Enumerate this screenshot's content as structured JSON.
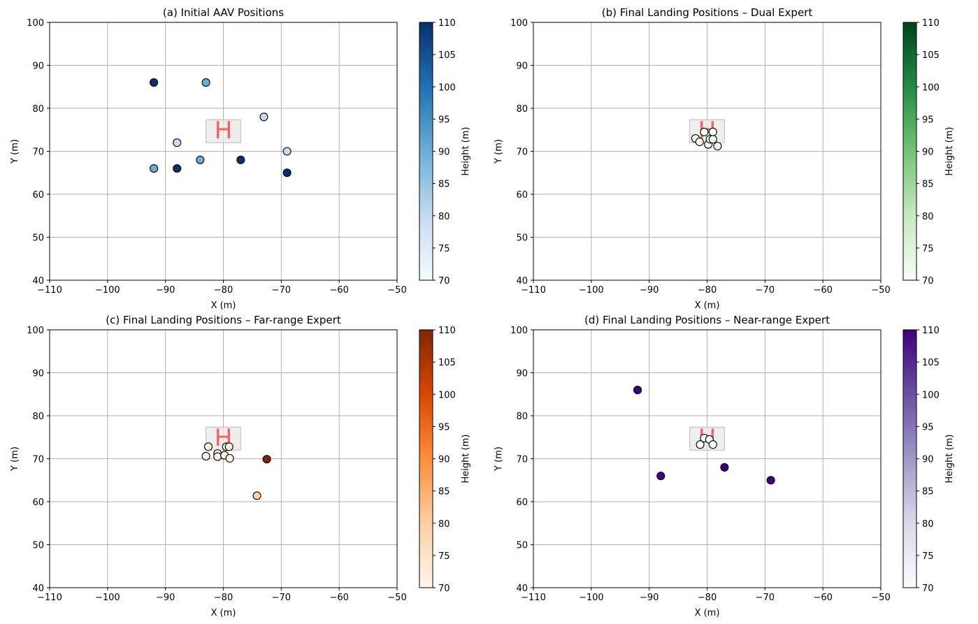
{
  "chart_data": [
    {
      "type": "scatter",
      "title": "(a) Initial AAV Positions",
      "xlabel": "X (m)",
      "ylabel": "Y (m)",
      "xlim": [
        -110,
        -50
      ],
      "ylim": [
        40,
        100
      ],
      "xticks": [
        "−110",
        "−100",
        "−90",
        "−80",
        "−70",
        "−60",
        "−50"
      ],
      "yticks": [
        "40",
        "50",
        "60",
        "70",
        "80",
        "90",
        "100"
      ],
      "grid": true,
      "colorbar": {
        "label": "Height (m)",
        "range": [
          70,
          110
        ],
        "ticks": [
          "70",
          "75",
          "80",
          "85",
          "90",
          "95",
          "100",
          "105",
          "110"
        ],
        "colormap": "Blues",
        "stops": [
          "#f7fbff",
          "#c6dbef",
          "#6baed6",
          "#2171b5",
          "#08306b"
        ]
      },
      "helipad": {
        "x": -80,
        "y": 75,
        "width": 6,
        "height": 6,
        "label": "H"
      },
      "points": [
        {
          "x": -92,
          "y": 86,
          "h": 110
        },
        {
          "x": -83,
          "y": 86,
          "h": 90
        },
        {
          "x": -73,
          "y": 78,
          "h": 80
        },
        {
          "x": -88,
          "y": 72,
          "h": 80
        },
        {
          "x": -69,
          "y": 70,
          "h": 80
        },
        {
          "x": -92,
          "y": 66,
          "h": 90
        },
        {
          "x": -88,
          "y": 66,
          "h": 110
        },
        {
          "x": -84,
          "y": 68,
          "h": 90
        },
        {
          "x": -77,
          "y": 68,
          "h": 110
        },
        {
          "x": -69,
          "y": 65,
          "h": 110
        }
      ]
    },
    {
      "type": "scatter",
      "title": "(b) Final Landing Positions – Dual Expert",
      "xlabel": "X (m)",
      "ylabel": "Y (m)",
      "xlim": [
        -110,
        -50
      ],
      "ylim": [
        40,
        100
      ],
      "xticks": [
        "−110",
        "−100",
        "−90",
        "−80",
        "−70",
        "−60",
        "−50"
      ],
      "yticks": [
        "40",
        "50",
        "60",
        "70",
        "80",
        "90",
        "100"
      ],
      "grid": true,
      "colorbar": {
        "label": "Height (m)",
        "range": [
          70,
          110
        ],
        "ticks": [
          "70",
          "75",
          "80",
          "85",
          "90",
          "95",
          "100",
          "105",
          "110"
        ],
        "colormap": "Greens",
        "stops": [
          "#f7fcf5",
          "#c7e9c0",
          "#74c476",
          "#238b45",
          "#00441b"
        ]
      },
      "helipad": {
        "x": -80,
        "y": 75,
        "width": 6,
        "height": 6,
        "label": "H"
      },
      "points": [
        {
          "x": -82,
          "y": 73,
          "h": 70
        },
        {
          "x": -81.3,
          "y": 72.2,
          "h": 70
        },
        {
          "x": -80.5,
          "y": 74.5,
          "h": 70
        },
        {
          "x": -79.8,
          "y": 71.6,
          "h": 70
        },
        {
          "x": -79.5,
          "y": 72.8,
          "h": 70
        },
        {
          "x": -79,
          "y": 74.5,
          "h": 70
        },
        {
          "x": -79,
          "y": 72.8,
          "h": 70
        },
        {
          "x": -78.2,
          "y": 71.2,
          "h": 70
        }
      ]
    },
    {
      "type": "scatter",
      "title": "(c) Final Landing Positions – Far-range Expert",
      "xlabel": "X (m)",
      "ylabel": "Y (m)",
      "xlim": [
        -110,
        -50
      ],
      "ylim": [
        40,
        100
      ],
      "xticks": [
        "−110",
        "−100",
        "−90",
        "−80",
        "−70",
        "−60",
        "−50"
      ],
      "yticks": [
        "40",
        "50",
        "60",
        "70",
        "80",
        "90",
        "100"
      ],
      "grid": true,
      "colorbar": {
        "label": "Height (m)",
        "range": [
          70,
          110
        ],
        "ticks": [
          "70",
          "75",
          "80",
          "85",
          "90",
          "95",
          "100",
          "105",
          "110"
        ],
        "colormap": "Oranges",
        "stops": [
          "#fff5eb",
          "#fdd0a2",
          "#fd8d3c",
          "#d94801",
          "#7f2704"
        ]
      },
      "helipad": {
        "x": -80,
        "y": 75,
        "width": 6,
        "height": 6,
        "label": "H"
      },
      "points": [
        {
          "x": -82.6,
          "y": 72.8,
          "h": 72
        },
        {
          "x": -83,
          "y": 70.6,
          "h": 70
        },
        {
          "x": -81,
          "y": 71.2,
          "h": 70
        },
        {
          "x": -81,
          "y": 70.5,
          "h": 70
        },
        {
          "x": -79.8,
          "y": 70.8,
          "h": 70
        },
        {
          "x": -79.5,
          "y": 72.8,
          "h": 72
        },
        {
          "x": -79,
          "y": 72.8,
          "h": 72
        },
        {
          "x": -78.9,
          "y": 70.1,
          "h": 70
        },
        {
          "x": -72.5,
          "y": 69.9,
          "h": 110
        },
        {
          "x": -74.2,
          "y": 61.4,
          "h": 80
        }
      ]
    },
    {
      "type": "scatter",
      "title": "(d) Final Landing Positions – Near-range Expert",
      "xlabel": "X (m)",
      "ylabel": "Y (m)",
      "xlim": [
        -110,
        -50
      ],
      "ylim": [
        40,
        100
      ],
      "xticks": [
        "−110",
        "−100",
        "−90",
        "−80",
        "−70",
        "−60",
        "−50"
      ],
      "yticks": [
        "40",
        "50",
        "60",
        "70",
        "80",
        "90",
        "100"
      ],
      "grid": true,
      "colorbar": {
        "label": "Height (m)",
        "range": [
          70,
          110
        ],
        "ticks": [
          "70",
          "75",
          "80",
          "85",
          "90",
          "95",
          "100",
          "105",
          "110"
        ],
        "colormap": "Purples",
        "stops": [
          "#fcfbfd",
          "#dadaeb",
          "#9e9ac8",
          "#6a51a3",
          "#3f007d"
        ]
      },
      "helipad": {
        "x": -80,
        "y": 75,
        "width": 6,
        "height": 6,
        "label": "H"
      },
      "points": [
        {
          "x": -92,
          "y": 86,
          "h": 110
        },
        {
          "x": -88,
          "y": 66,
          "h": 110
        },
        {
          "x": -77,
          "y": 68,
          "h": 110
        },
        {
          "x": -69,
          "y": 65,
          "h": 110
        },
        {
          "x": -81.2,
          "y": 73.3,
          "h": 70
        },
        {
          "x": -80.5,
          "y": 74.8,
          "h": 70
        },
        {
          "x": -79.6,
          "y": 74.5,
          "h": 70
        },
        {
          "x": -79,
          "y": 73.3,
          "h": 70
        }
      ]
    }
  ]
}
